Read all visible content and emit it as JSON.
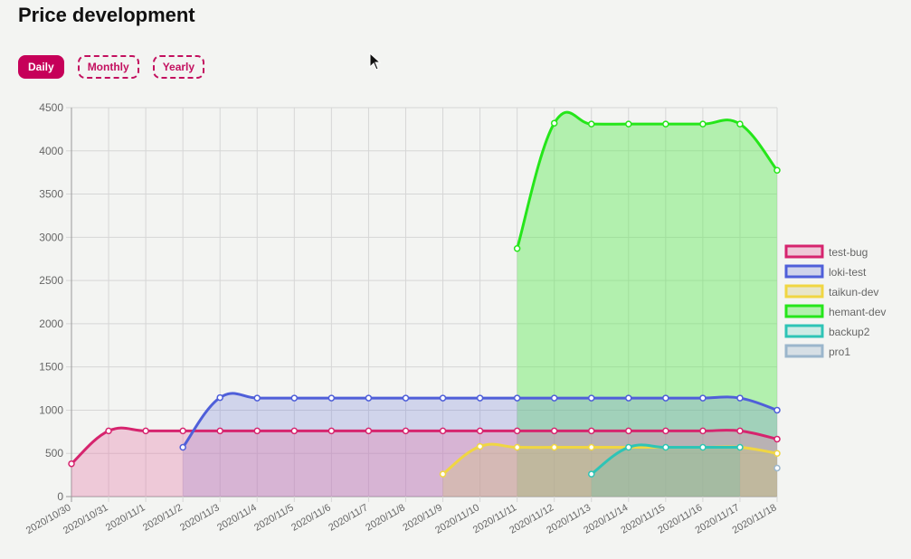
{
  "page": {
    "title": "Price development"
  },
  "period_tabs": [
    {
      "label": "Daily",
      "active": true
    },
    {
      "label": "Monthly",
      "active": false
    },
    {
      "label": "Yearly",
      "active": false
    }
  ],
  "chart_data": {
    "type": "area",
    "categories": [
      "2020/10/30",
      "2020/10/31",
      "2020/11/1",
      "2020/11/2",
      "2020/11/3",
      "2020/11/4",
      "2020/11/5",
      "2020/11/6",
      "2020/11/7",
      "2020/11/8",
      "2020/11/9",
      "2020/11/10",
      "2020/11/11",
      "2020/11/12",
      "2020/11/13",
      "2020/11/14",
      "2020/11/15",
      "2020/11/16",
      "2020/11/17",
      "2020/11/18"
    ],
    "ylim": [
      0,
      4500
    ],
    "yticks": [
      0,
      500,
      1000,
      1500,
      2000,
      2500,
      3000,
      3500,
      4000,
      4500
    ],
    "grid": true,
    "legend_position": "right",
    "series": [
      {
        "name": "test-bug",
        "color": "#d6246e",
        "fill": "rgba(230,120,170,0.35)",
        "values": [
          380,
          760,
          760,
          760,
          760,
          760,
          760,
          760,
          760,
          760,
          760,
          760,
          760,
          760,
          760,
          760,
          760,
          760,
          760,
          665
        ]
      },
      {
        "name": "loki-test",
        "color": "#4f5fd9",
        "fill": "rgba(120,130,220,0.28)",
        "values": [
          null,
          null,
          null,
          570,
          1145,
          1140,
          1140,
          1140,
          1140,
          1140,
          1140,
          1140,
          1140,
          1140,
          1140,
          1140,
          1140,
          1140,
          1140,
          1000
        ]
      },
      {
        "name": "taikun-dev",
        "color": "#f0d642",
        "fill": "rgba(210,200,110,0.30)",
        "values": [
          null,
          null,
          null,
          null,
          null,
          null,
          null,
          null,
          null,
          null,
          260,
          580,
          570,
          570,
          570,
          570,
          570,
          570,
          570,
          500
        ]
      },
      {
        "name": "hemant-dev",
        "color": "#25e61a",
        "fill": "rgba(100,235,90,0.45)",
        "values": [
          null,
          null,
          null,
          null,
          null,
          null,
          null,
          null,
          null,
          null,
          null,
          null,
          2870,
          4320,
          4310,
          4310,
          4310,
          4310,
          4310,
          3775
        ]
      },
      {
        "name": "backup2",
        "color": "#2ec4b6",
        "fill": "rgba(60,200,180,0.20)",
        "values": [
          null,
          null,
          null,
          null,
          null,
          null,
          null,
          null,
          null,
          null,
          null,
          null,
          null,
          null,
          260,
          570,
          570,
          570,
          570,
          null
        ]
      },
      {
        "name": "pro1",
        "color": "#9bb6cc",
        "fill": "rgba(150,175,200,0.30)",
        "values": [
          null,
          null,
          null,
          null,
          null,
          null,
          null,
          null,
          null,
          null,
          null,
          null,
          null,
          null,
          null,
          null,
          null,
          null,
          null,
          330
        ]
      }
    ]
  }
}
